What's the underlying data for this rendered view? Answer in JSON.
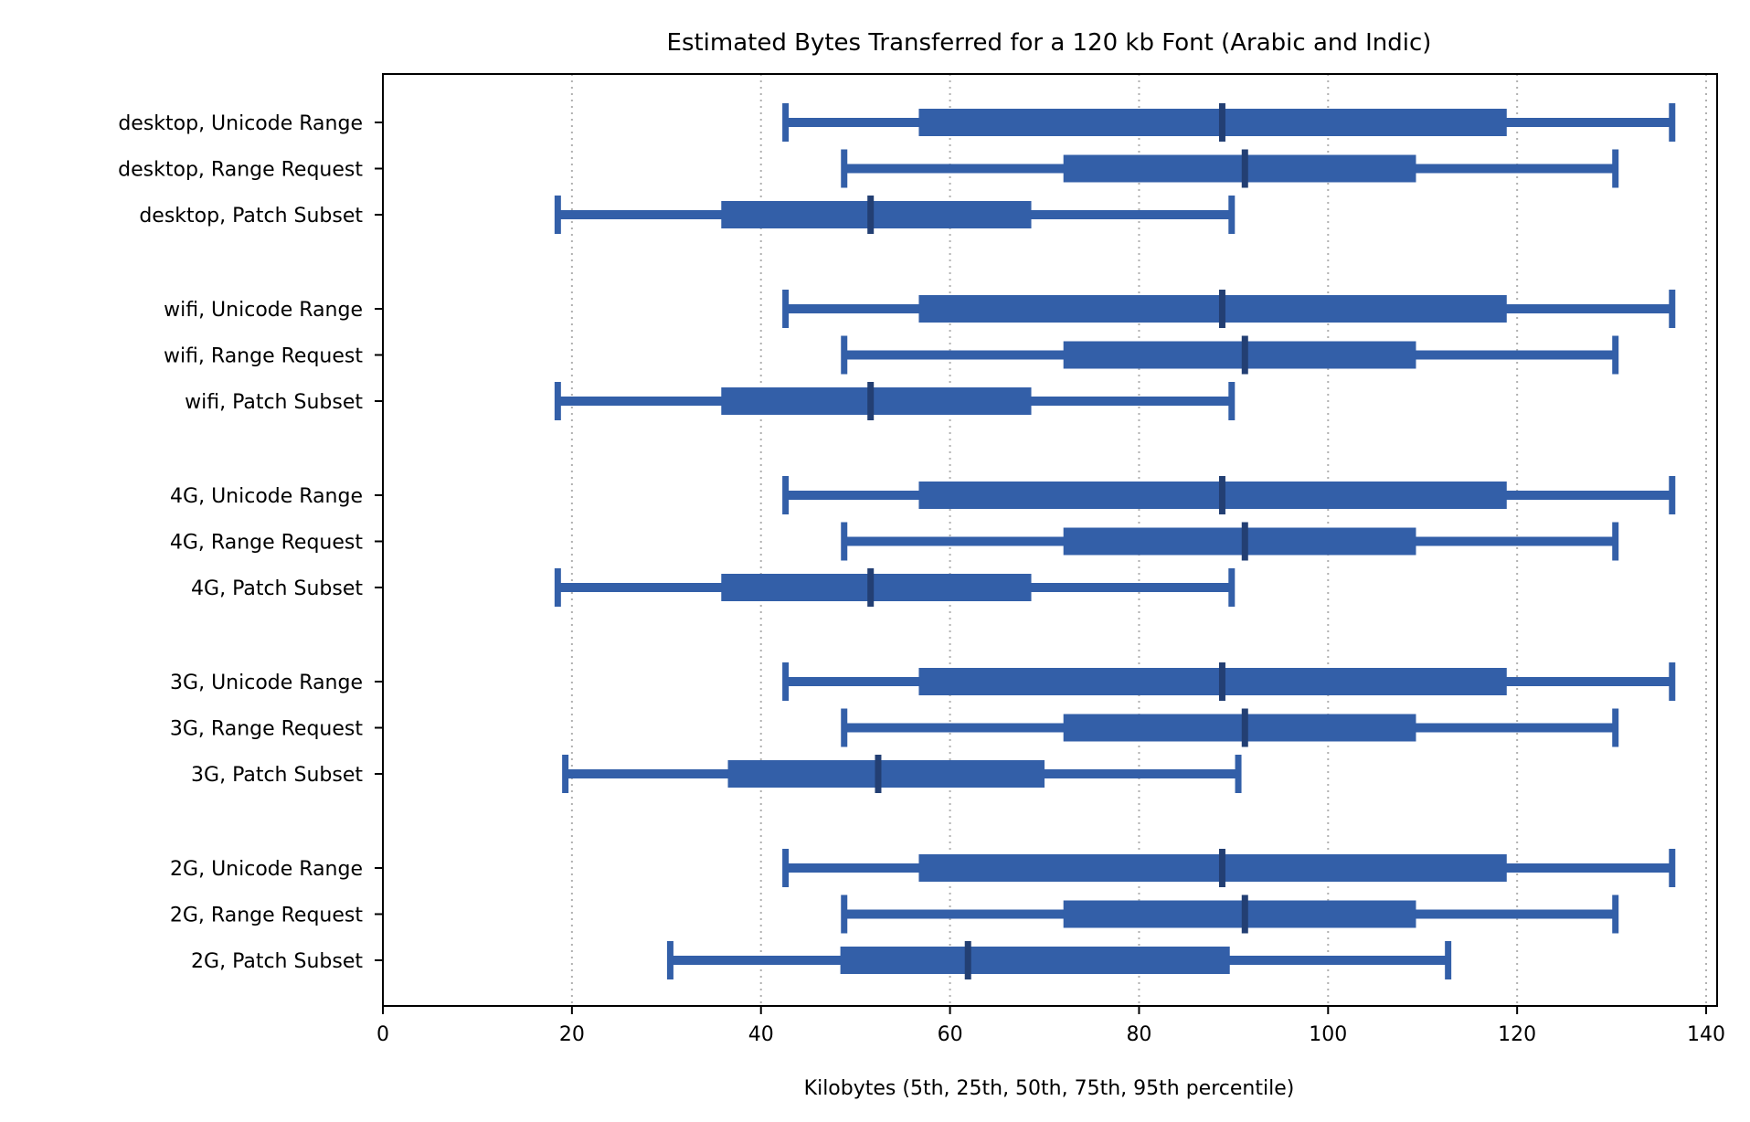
{
  "chart_data": {
    "type": "box",
    "title": "Estimated Bytes Transferred for a 120 kb Font (Arabic and Indic)",
    "xlabel": "Kilobytes (5th, 25th, 50th, 75th, 95th percentile)",
    "ylabel": "",
    "xlim": [
      0,
      140
    ],
    "xticks": [
      0,
      20,
      40,
      60,
      80,
      100,
      120,
      140
    ],
    "grid": "x dotted",
    "colors": {
      "box": "#335fa8",
      "median": "#233f73",
      "grid": "#b0b0b0"
    },
    "groups": [
      {
        "rows": [
          {
            "label": "desktop, Unicode Range",
            "p5": 42.6,
            "p25": 56.7,
            "p50": 88.8,
            "p75": 118.9,
            "p95": 136.4
          },
          {
            "label": "desktop, Range Request",
            "p5": 48.8,
            "p25": 72.0,
            "p50": 91.2,
            "p75": 109.3,
            "p95": 130.4
          },
          {
            "label": "desktop, Patch Subset",
            "p5": 18.5,
            "p25": 35.8,
            "p50": 51.6,
            "p75": 68.6,
            "p95": 89.8
          }
        ]
      },
      {
        "rows": [
          {
            "label": "wifi, Unicode Range",
            "p5": 42.6,
            "p25": 56.7,
            "p50": 88.8,
            "p75": 118.9,
            "p95": 136.4
          },
          {
            "label": "wifi, Range Request",
            "p5": 48.8,
            "p25": 72.0,
            "p50": 91.2,
            "p75": 109.3,
            "p95": 130.4
          },
          {
            "label": "wifi, Patch Subset",
            "p5": 18.5,
            "p25": 35.8,
            "p50": 51.6,
            "p75": 68.6,
            "p95": 89.8
          }
        ]
      },
      {
        "rows": [
          {
            "label": "4G, Unicode Range",
            "p5": 42.6,
            "p25": 56.7,
            "p50": 88.8,
            "p75": 118.9,
            "p95": 136.4
          },
          {
            "label": "4G, Range Request",
            "p5": 48.8,
            "p25": 72.0,
            "p50": 91.2,
            "p75": 109.3,
            "p95": 130.4
          },
          {
            "label": "4G, Patch Subset",
            "p5": 18.5,
            "p25": 35.8,
            "p50": 51.6,
            "p75": 68.6,
            "p95": 89.8
          }
        ]
      },
      {
        "rows": [
          {
            "label": "3G, Unicode Range",
            "p5": 42.6,
            "p25": 56.7,
            "p50": 88.8,
            "p75": 118.9,
            "p95": 136.4
          },
          {
            "label": "3G, Range Request",
            "p5": 48.8,
            "p25": 72.0,
            "p50": 91.2,
            "p75": 109.3,
            "p95": 130.4
          },
          {
            "label": "3G, Patch Subset",
            "p5": 19.3,
            "p25": 36.5,
            "p50": 52.4,
            "p75": 70.0,
            "p95": 90.5
          }
        ]
      },
      {
        "rows": [
          {
            "label": "2G, Unicode Range",
            "p5": 42.6,
            "p25": 56.7,
            "p50": 88.8,
            "p75": 118.9,
            "p95": 136.4
          },
          {
            "label": "2G, Range Request",
            "p5": 48.8,
            "p25": 72.0,
            "p50": 91.2,
            "p75": 109.3,
            "p95": 130.4
          },
          {
            "label": "2G, Patch Subset",
            "p5": 30.4,
            "p25": 48.4,
            "p50": 61.9,
            "p75": 89.6,
            "p95": 112.7
          }
        ]
      }
    ]
  }
}
